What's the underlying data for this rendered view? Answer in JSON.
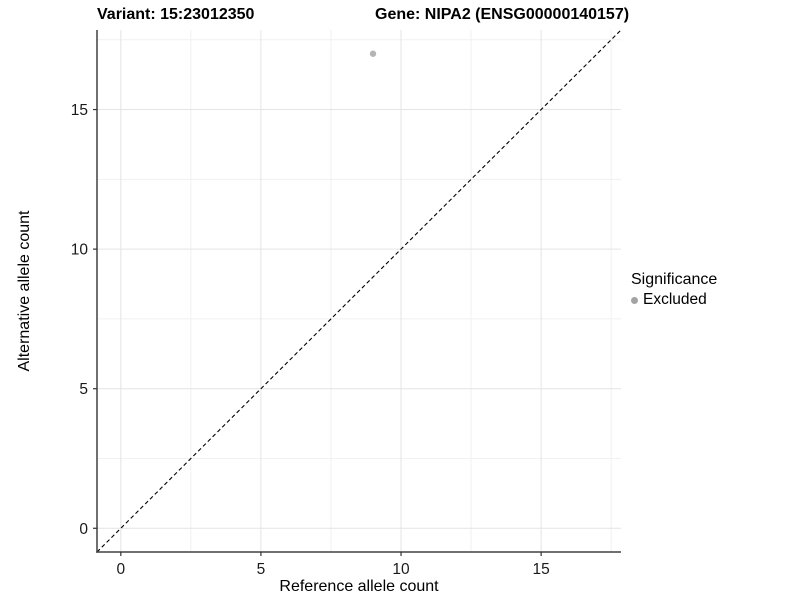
{
  "header": {
    "variant_title": "Variant: 15:23012350",
    "gene_title": "Gene: NIPA2 (ENSG00000140157)"
  },
  "chart_data": {
    "type": "scatter",
    "title_left": "Variant: 15:23012350",
    "title_right": "Gene: NIPA2 (ENSG00000140157)",
    "xlabel": "Reference allele count",
    "ylabel": "Alternative allele count",
    "xlim": [
      -0.85,
      17.85
    ],
    "ylim": [
      -0.85,
      17.85
    ],
    "x_ticks": [
      0,
      5,
      10,
      15
    ],
    "y_ticks": [
      0,
      5,
      10,
      15
    ],
    "x_minor_ticks": [
      2.5,
      7.5,
      12.5,
      17.5
    ],
    "y_minor_ticks": [
      2.5,
      7.5,
      12.5,
      17.5
    ],
    "grid": true,
    "legend_position": "right",
    "points": [
      {
        "x": 9,
        "y": 17,
        "significance": "Excluded"
      }
    ],
    "identity_line": {
      "slope": 1,
      "intercept": 0,
      "style": "dashed"
    },
    "legend": {
      "title": "Significance",
      "items": [
        {
          "label": "Excluded",
          "color": "#b0b0b0"
        }
      ]
    }
  },
  "colors": {
    "background": "#ffffff",
    "axis_line": "#404040",
    "tick_mark": "#333333",
    "tick_label": "#1a1a1a",
    "grid_major": "#e4e4e4",
    "grid_minor": "#f1f1f1",
    "identity_line": "#000000",
    "point": "#b4b4b4",
    "legend_key": "#a3a3a3",
    "text": "#000000"
  }
}
